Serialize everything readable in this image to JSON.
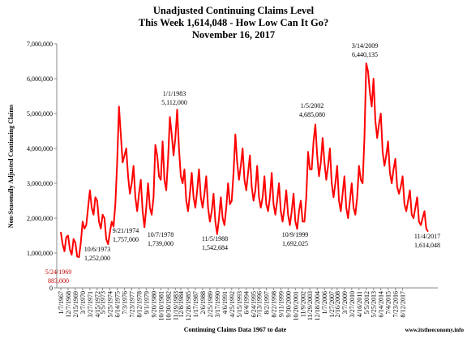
{
  "chart_data": {
    "type": "line",
    "title": [
      "Unadjusted Continuing Claims Level",
      "This Week 1,614,048 - How Low Can It Go?",
      "November 16, 2017"
    ],
    "y_label": "Non-Seasonally Adjusted Continuing Claims",
    "x_label": "Continuing Claims Data 1967 to date",
    "source": "www.itstheeconomy.info",
    "ylim": [
      0,
      7000000
    ],
    "yticks": [
      0,
      {
        "value": 1000000,
        "label": "1,000,000"
      },
      {
        "value": 2000000,
        "label": "2,000,000"
      },
      {
        "value": 3000000,
        "label": "3,000,000"
      },
      {
        "value": 4000000,
        "label": "4,000,000"
      },
      {
        "value": 5000000,
        "label": "5,000,000"
      },
      {
        "value": 6000000,
        "label": "6,000,000"
      },
      {
        "value": 7000000,
        "label": "7,000,000"
      }
    ],
    "categories": [
      "1/7/1967",
      null,
      null,
      null,
      "12/7/1968",
      null,
      null,
      null,
      "2/15/1969",
      null,
      null,
      null,
      "3/7/1970",
      null,
      null,
      null,
      "3/27/1971",
      null,
      null,
      null,
      "4/15/1972",
      null,
      null,
      "5/5/1973",
      null,
      null,
      null,
      "5/25/1974",
      null,
      null,
      null,
      "6/14/1975",
      null,
      null,
      null,
      "7/3/1976",
      null,
      null,
      null,
      "7/23/1977",
      null,
      null,
      null,
      "8/12/1978",
      null,
      null,
      null,
      "9/1/1979",
      null,
      null,
      null,
      "9/20/1980",
      null,
      null,
      null,
      "10/10/1981",
      null,
      null,
      null,
      "10/30/1982",
      null,
      null,
      null,
      "11/19/1983",
      null,
      null,
      "12/8/1984",
      null,
      null,
      null,
      "12/28/1985",
      null,
      null,
      null,
      "1/17/1987",
      null,
      null,
      null,
      "2/6/1988",
      null,
      null,
      null,
      "2/25/1989",
      null,
      null,
      null,
      "3/17/1990",
      null,
      null,
      null,
      "4/6/1991",
      null,
      null,
      null,
      "4/25/1992",
      null,
      null,
      null,
      "5/15/1993",
      null,
      null,
      null,
      "6/4/1994",
      null,
      null,
      null,
      "6/24/1995",
      null,
      null,
      "7/13/1996",
      null,
      null,
      null,
      "8/2/1997",
      null,
      null,
      null,
      "8/22/1998",
      null,
      null,
      null,
      "9/11/1999",
      null,
      null,
      null,
      "9/30/2000",
      null,
      null,
      null,
      "10/20/2001",
      null,
      null,
      null,
      "11/9/2002",
      null,
      null,
      null,
      "11/29/2003",
      null,
      null,
      null,
      "12/18/2004",
      null,
      null,
      null,
      "1/7/2006",
      null,
      null,
      null,
      "1/27/2007",
      null,
      null,
      "2/16/2008",
      null,
      null,
      null,
      "3/7/2009",
      null,
      null,
      null,
      "3/27/2010",
      null,
      null,
      null,
      "4/16/2011",
      null,
      null,
      null,
      "5/5/2012",
      null,
      null,
      null,
      "5/25/2013",
      null,
      null,
      null,
      "6/14/2014",
      null,
      null,
      null,
      "7/4/2015",
      null,
      null,
      null,
      "7/23/2016",
      null,
      null,
      null,
      "8/12/2017",
      null,
      null,
      null,
      null,
      null,
      null,
      null,
      null,
      null,
      null,
      null,
      null,
      null,
      null
    ],
    "series": [
      {
        "name": "Continuing Claims",
        "color": "#ff0000",
        "values": [
          1600000,
          1250000,
          1050000,
          1450000,
          1500000,
          1100000,
          950000,
          1400000,
          1300000,
          900000,
          883000,
          1300000,
          1900000,
          1700000,
          1800000,
          2300000,
          2800000,
          2300000,
          2100000,
          2600000,
          2500000,
          1900000,
          1700000,
          2100000,
          2000000,
          1400000,
          1252000,
          1600000,
          1900000,
          1757000,
          2400000,
          3600000,
          5200000,
          4400000,
          3600000,
          3800000,
          4000000,
          3200000,
          2700000,
          3000000,
          3500000,
          2600000,
          2200000,
          2700000,
          3100000,
          2200000,
          1739000,
          2300000,
          3000000,
          2300000,
          2100000,
          2600000,
          4100000,
          3800000,
          3200000,
          3100000,
          4200000,
          3100000,
          2800000,
          3700000,
          4900000,
          4400000,
          3800000,
          4300000,
          5112000,
          4000000,
          3200000,
          3000000,
          3400000,
          2500000,
          2200000,
          2700000,
          3300000,
          2600000,
          2300000,
          2800000,
          3400000,
          2600000,
          2300000,
          2700000,
          3200000,
          2300000,
          1900000,
          2200000,
          2700000,
          1900000,
          1542684,
          2000000,
          2600000,
          2000000,
          1800000,
          2300000,
          3000000,
          2400000,
          2500000,
          3300000,
          4400000,
          3600000,
          3100000,
          3500000,
          4000000,
          3100000,
          2800000,
          3300000,
          3800000,
          2900000,
          2500000,
          2800000,
          3500000,
          2600000,
          2300000,
          2600000,
          3200000,
          2400000,
          2200000,
          2600000,
          3300000,
          2400000,
          2100000,
          2500000,
          3000000,
          2200000,
          1900000,
          2300000,
          2800000,
          2100000,
          1800000,
          2200000,
          2700000,
          1900000,
          1692025,
          2200000,
          2500000,
          1900000,
          1900000,
          2600000,
          3900000,
          3400000,
          3400000,
          4200000,
          4685080,
          3800000,
          3200000,
          3600000,
          4300000,
          3600000,
          3100000,
          3500000,
          4000000,
          3000000,
          2600000,
          3000000,
          3500000,
          2500000,
          2200000,
          2700000,
          3200000,
          2300000,
          2000000,
          2500000,
          3000000,
          2300000,
          2100000,
          2600000,
          3500000,
          3100000,
          3000000,
          4300000,
          6440135,
          6200000,
          5600000,
          5200000,
          6000000,
          4800000,
          4300000,
          4700000,
          5000000,
          3900000,
          3500000,
          3800000,
          4200000,
          3300000,
          3000000,
          3400000,
          3700000,
          2900000,
          2700000,
          2900000,
          3200000,
          2400000,
          2200000,
          2500000,
          2800000,
          2100000,
          2000000,
          2300000,
          2600000,
          1900000,
          1800000,
          2000000,
          2200000,
          1700000,
          1614048
        ]
      }
    ],
    "annotations": [
      {
        "text": [
          "5/24/1969",
          "883,000"
        ],
        "color": "#c00000"
      },
      {
        "text": [
          "10/6/1973",
          "1,252,000"
        ],
        "color": "#000000"
      },
      {
        "text": [
          "9/21/1974",
          "1,757,000"
        ],
        "color": "#000000"
      },
      {
        "text": [
          "10/7/1978",
          "1,739,000"
        ],
        "color": "#000000"
      },
      {
        "text": [
          "1/1/1983",
          "5,112,000"
        ],
        "color": "#000000"
      },
      {
        "text": [
          "11/5/1988",
          "1,542,684"
        ],
        "color": "#000000"
      },
      {
        "text": [
          "10/9/1999",
          "1,692,025"
        ],
        "color": "#000000"
      },
      {
        "text": [
          "1/5/2002",
          "4,685,080"
        ],
        "color": "#000000"
      },
      {
        "text": [
          "3/14/2009",
          "6,440,135"
        ],
        "color": "#000000"
      },
      {
        "text": [
          "11/4/2017",
          "1,614,048"
        ],
        "color": "#000000"
      }
    ]
  }
}
